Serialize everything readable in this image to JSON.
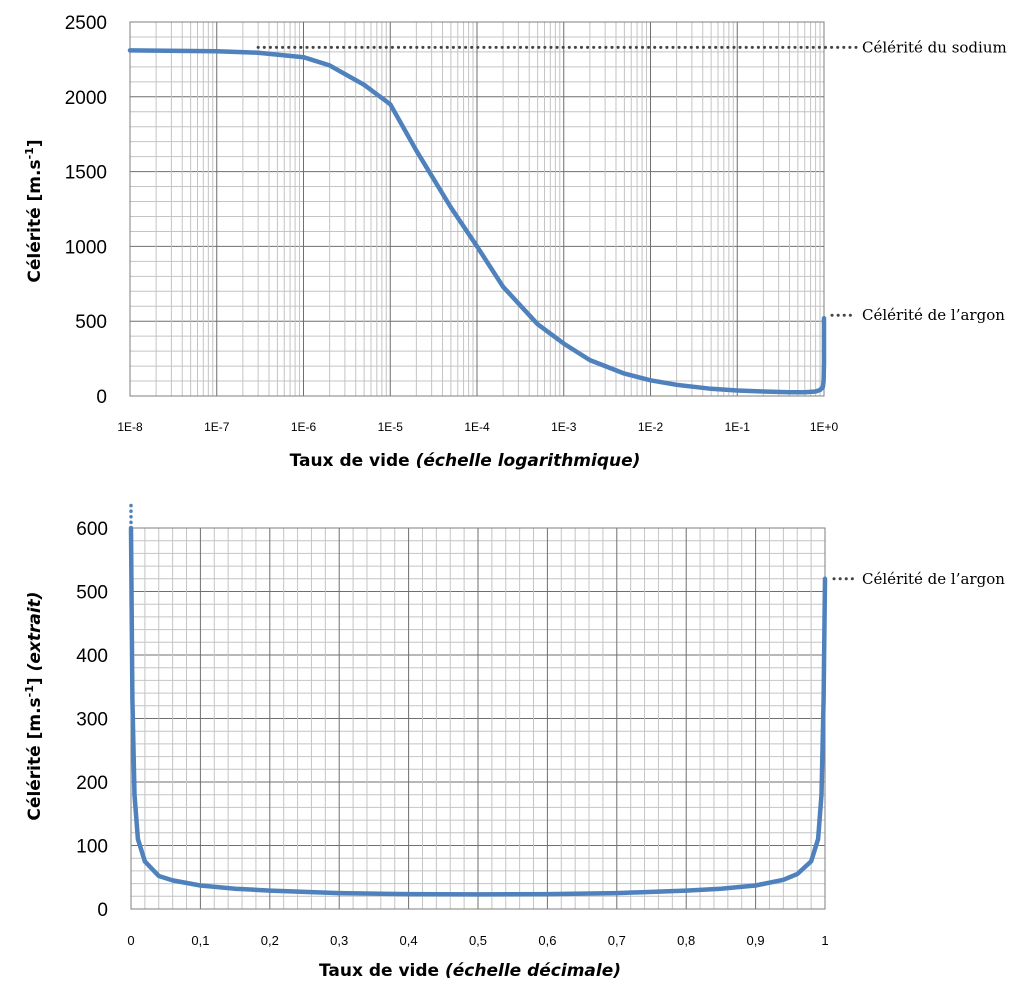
{
  "chart_data": [
    {
      "type": "line",
      "xscale": "log",
      "xlabel_main": "Taux de vide ",
      "xlabel_italic": "(échelle logarithmique)",
      "ylabel": "Célérité [m.s-1]",
      "ylim": [
        0,
        2500
      ],
      "yticks": [
        "0",
        "500",
        "1000",
        "1500",
        "2000",
        "2500"
      ],
      "xlim": [
        1e-08,
        1
      ],
      "xticks": [
        "1E-8",
        "1E-7",
        "1E-6",
        "1E-5",
        "1E-4",
        "1E-3",
        "1E-2",
        "1E-1",
        "1E+0"
      ],
      "grid": "log-major-minor",
      "color": "#4f81bd",
      "series": [
        {
          "x": [
            1e-08,
            1e-07,
            3e-07,
            1e-06,
            2e-06,
            5e-06,
            1e-05,
            2e-05,
            5e-05,
            0.0001,
            0.0002,
            0.0005,
            0.001,
            0.002,
            0.005,
            0.01,
            0.02,
            0.05,
            0.1,
            0.2,
            0.4,
            0.6,
            0.8,
            0.9,
            0.97,
            0.99,
            0.999,
            1.0
          ],
          "y": [
            2310,
            2305,
            2295,
            2265,
            2210,
            2080,
            1950,
            1640,
            1260,
            1000,
            730,
            480,
            350,
            240,
            150,
            105,
            75,
            48,
            37,
            30,
            25,
            25,
            30,
            40,
            60,
            100,
            220,
            520
          ]
        }
      ],
      "annotations": [
        {
          "text": "Célérité du sodium",
          "y": 2330,
          "x_from": 3e-07
        },
        {
          "text": "Célérité de l’argon",
          "y": 540
        }
      ]
    },
    {
      "type": "line",
      "xscale": "linear",
      "xlabel_main": "Taux de vide ",
      "xlabel_italic": "(échelle décimale)",
      "ylabel_main": "Célérité [m.s-1] ",
      "ylabel_italic": "(extrait)",
      "ylim": [
        0,
        600
      ],
      "yticks": [
        "0",
        "100",
        "200",
        "300",
        "400",
        "500",
        "600"
      ],
      "xlim": [
        0,
        1
      ],
      "xticks": [
        "0",
        "0,1",
        "0,2",
        "0,3",
        "0,4",
        "0,5",
        "0,6",
        "0,7",
        "0,8",
        "0,9",
        "1"
      ],
      "grid": "major-minor",
      "color": "#4f81bd",
      "series": [
        {
          "x": [
            0.0,
            0.002,
            0.005,
            0.01,
            0.02,
            0.04,
            0.06,
            0.1,
            0.15,
            0.2,
            0.3,
            0.4,
            0.5,
            0.6,
            0.7,
            0.8,
            0.85,
            0.9,
            0.94,
            0.96,
            0.98,
            0.99,
            0.995,
            0.998,
            1.0
          ],
          "y": [
            600,
            330,
            180,
            110,
            75,
            52,
            45,
            37,
            32,
            29,
            25,
            23.5,
            23,
            23.5,
            25,
            29,
            32,
            37,
            46,
            55,
            75,
            110,
            180,
            330,
            520
          ]
        }
      ],
      "annotations": [
        {
          "text": "Célérité de l’argon",
          "y": 520
        }
      ]
    }
  ]
}
